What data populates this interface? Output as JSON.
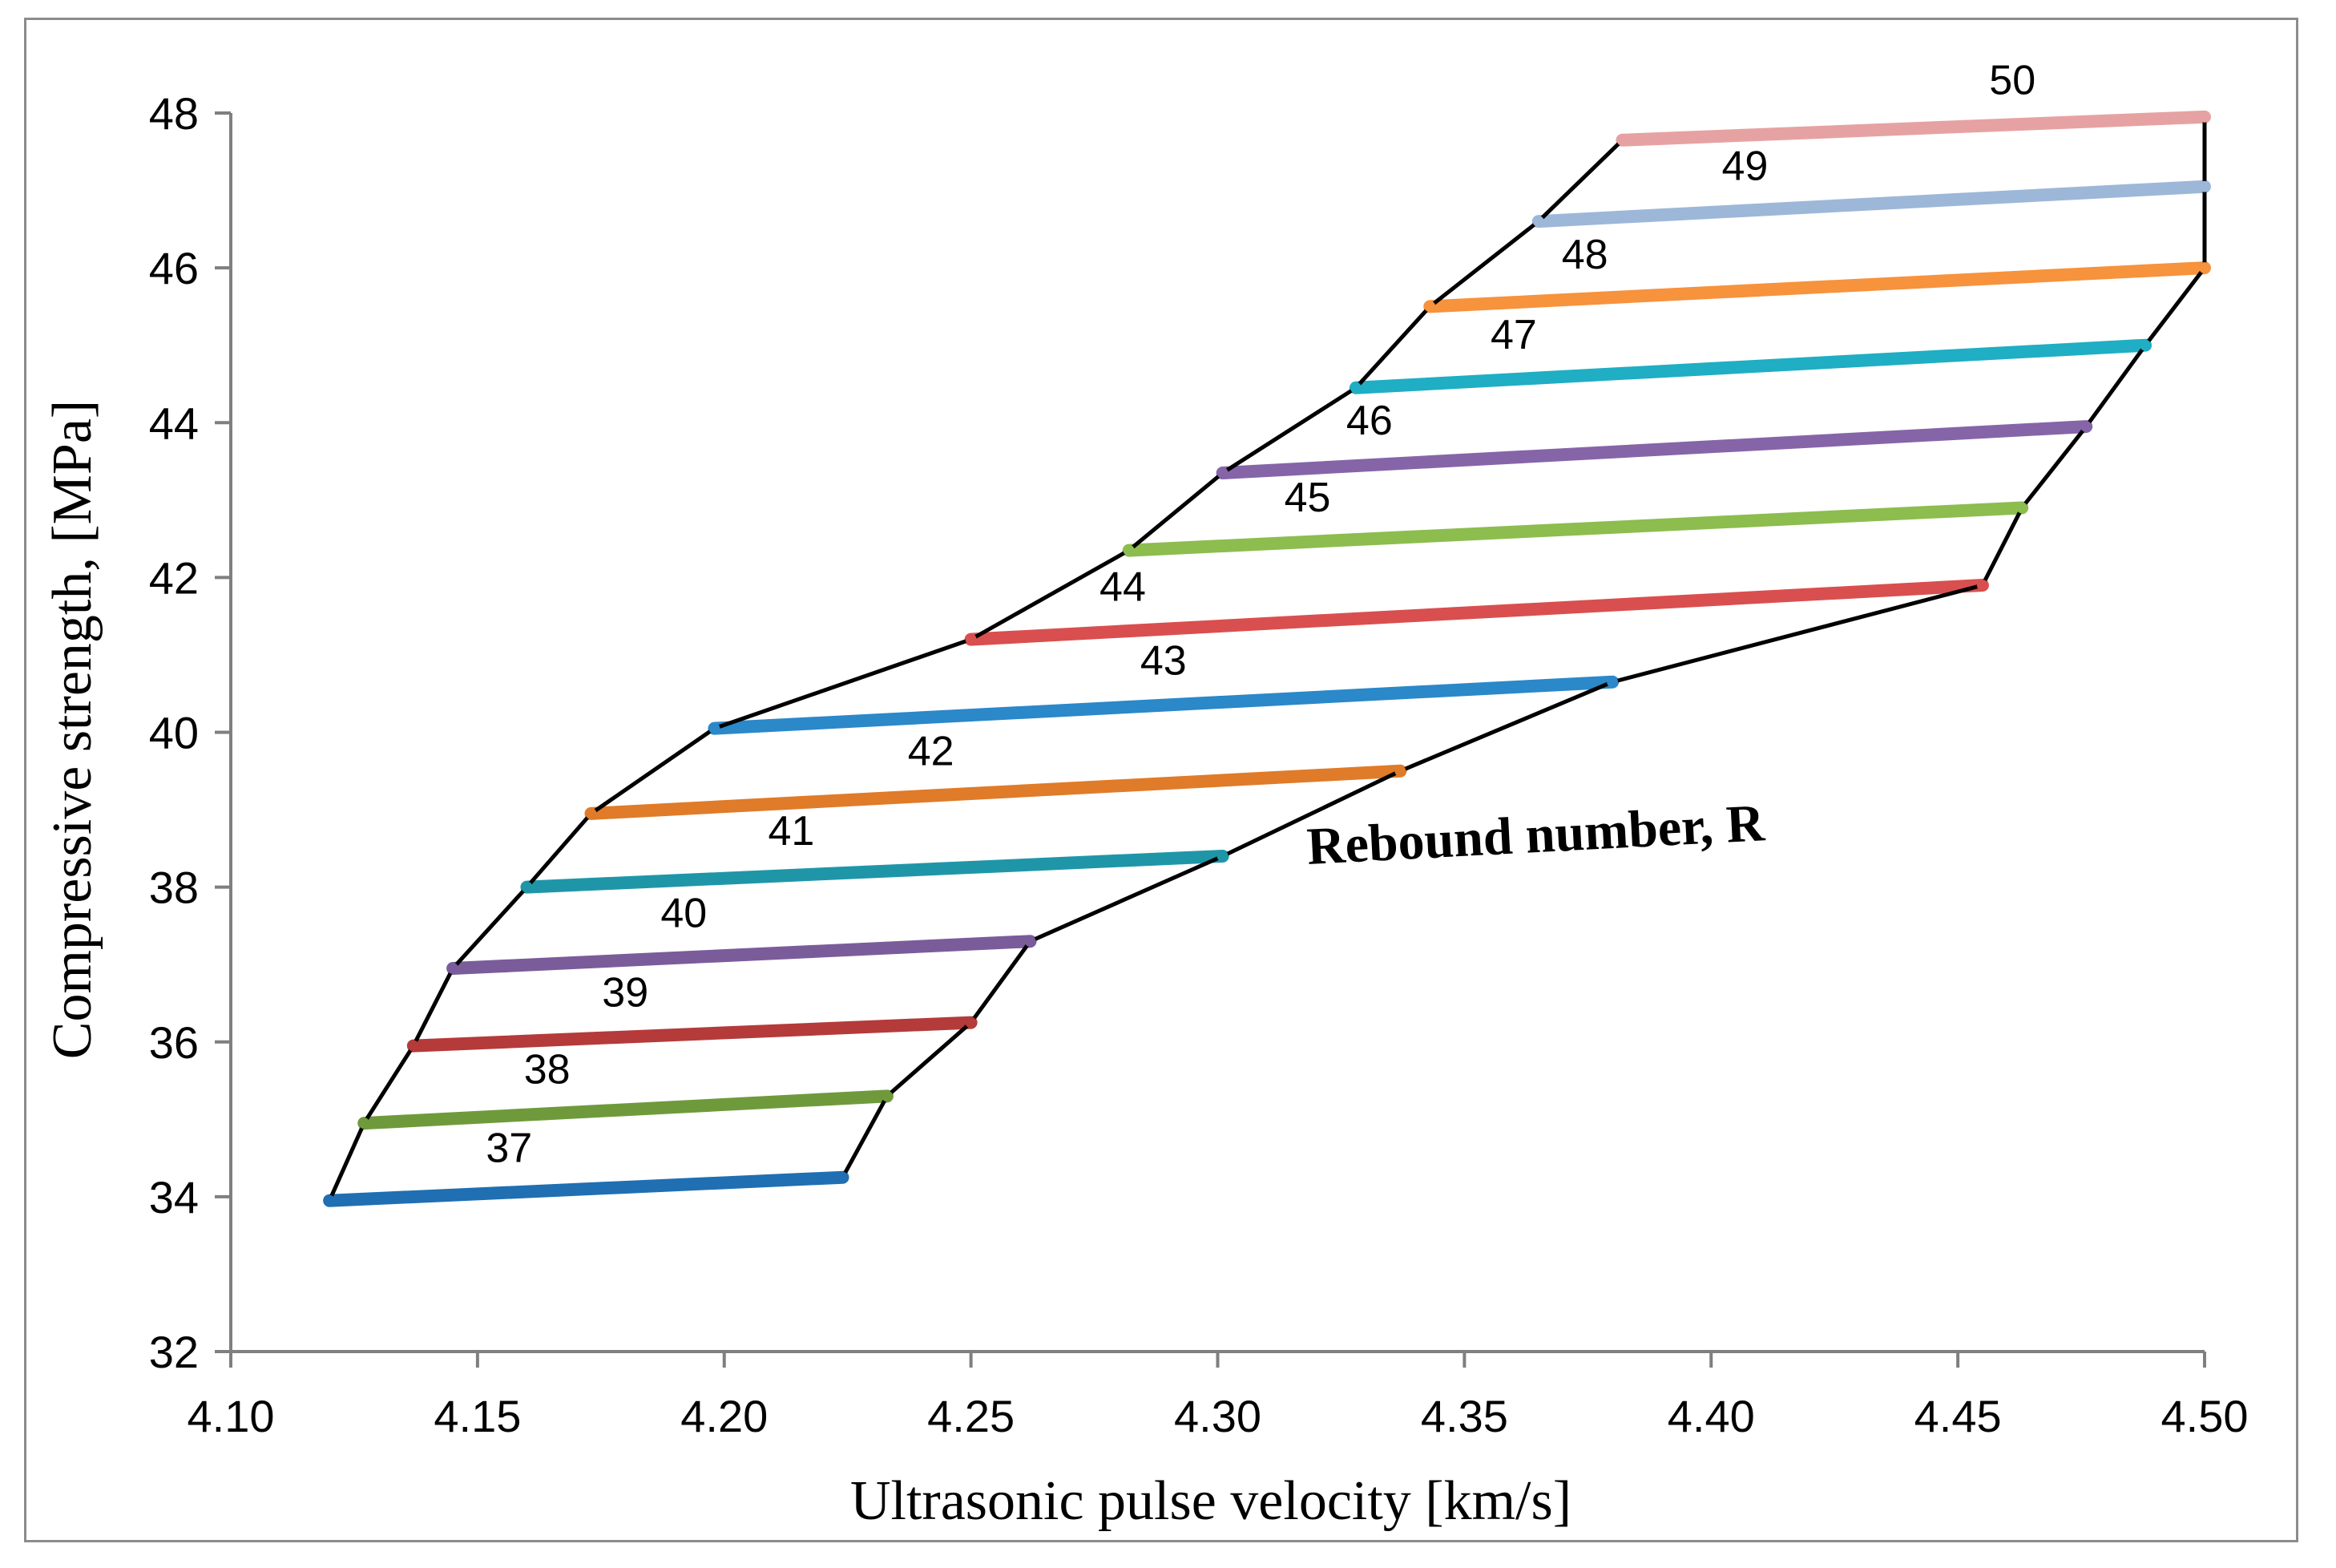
{
  "chart_data": {
    "type": "line",
    "title": "",
    "xlabel": "Ultrasonic pulse velocity [km/s]",
    "ylabel": "Compressive strength, [MPa]",
    "xlim": [
      4.1,
      4.5
    ],
    "ylim": [
      32,
      48
    ],
    "xticks": [
      "4.10",
      "4.15",
      "4.20",
      "4.25",
      "4.30",
      "4.35",
      "4.40",
      "4.45",
      "4.50"
    ],
    "yticks": [
      "32",
      "34",
      "36",
      "38",
      "40",
      "42",
      "44",
      "46",
      "48"
    ],
    "annotation": "Rebound number, R",
    "series": [
      {
        "name": "37",
        "color": "#1f6fb2",
        "x": [
          4.12,
          4.224
        ],
        "y": [
          33.95,
          34.25
        ]
      },
      {
        "name": "38",
        "color": "#6f9a3c",
        "x": [
          4.127,
          4.233
        ],
        "y": [
          34.95,
          35.3
        ]
      },
      {
        "name": "39",
        "color": "#b53a3a",
        "x": [
          4.137,
          4.25
        ],
        "y": [
          35.95,
          36.25
        ]
      },
      {
        "name": "40",
        "color": "#7a5c9b",
        "x": [
          4.145,
          4.262
        ],
        "y": [
          36.95,
          37.3
        ]
      },
      {
        "name": "41",
        "color": "#1f96a8",
        "x": [
          4.16,
          4.301
        ],
        "y": [
          38.0,
          38.4
        ]
      },
      {
        "name": "42",
        "color": "#e07b29",
        "x": [
          4.173,
          4.337
        ],
        "y": [
          38.95,
          39.5
        ]
      },
      {
        "name": "43",
        "color": "#2b88c9",
        "x": [
          4.198,
          4.38
        ],
        "y": [
          40.05,
          40.65
        ]
      },
      {
        "name": "44",
        "color": "#d94f4f",
        "x": [
          4.25,
          4.455
        ],
        "y": [
          41.2,
          41.9
        ]
      },
      {
        "name": "45",
        "color": "#8cbd4e",
        "x": [
          4.282,
          4.463
        ],
        "y": [
          42.35,
          42.9
        ]
      },
      {
        "name": "46",
        "color": "#8565a8",
        "x": [
          4.301,
          4.476
        ],
        "y": [
          43.35,
          43.95
        ]
      },
      {
        "name": "47",
        "color": "#1faec4",
        "x": [
          4.328,
          4.488
        ],
        "y": [
          44.45,
          45.0
        ]
      },
      {
        "name": "48",
        "color": "#f7923d",
        "x": [
          4.343,
          4.5
        ],
        "y": [
          45.5,
          46.0
        ]
      },
      {
        "name": "49",
        "color": "#9db7d8",
        "x": [
          4.365,
          4.5
        ],
        "y": [
          46.6,
          47.05
        ]
      },
      {
        "name": "50",
        "color": "#e6a2a2",
        "x": [
          4.382,
          4.5
        ],
        "y": [
          47.65,
          47.95
        ]
      }
    ],
    "envelope_color": "#000000",
    "axis_color": "#7f7f7f"
  }
}
